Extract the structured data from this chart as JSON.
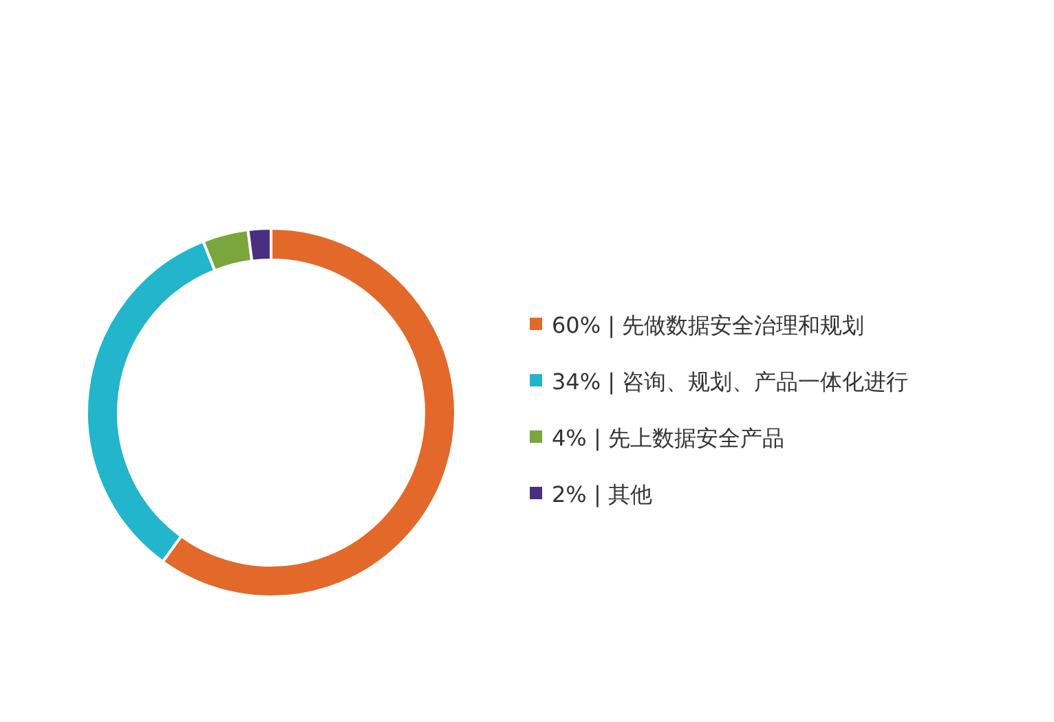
{
  "chart_data": {
    "type": "donut",
    "categories": [
      "60% | 先做数据安全治理和规划",
      "34% | 咨询、规划、产品一体化进行",
      "4% | 先上数据安全产品",
      "2% | 其他"
    ],
    "values": [
      60,
      34,
      4,
      2
    ],
    "colors": [
      "#e2692a",
      "#22b5cc",
      "#7aa63c",
      "#4a2f80"
    ],
    "legend": "right"
  }
}
